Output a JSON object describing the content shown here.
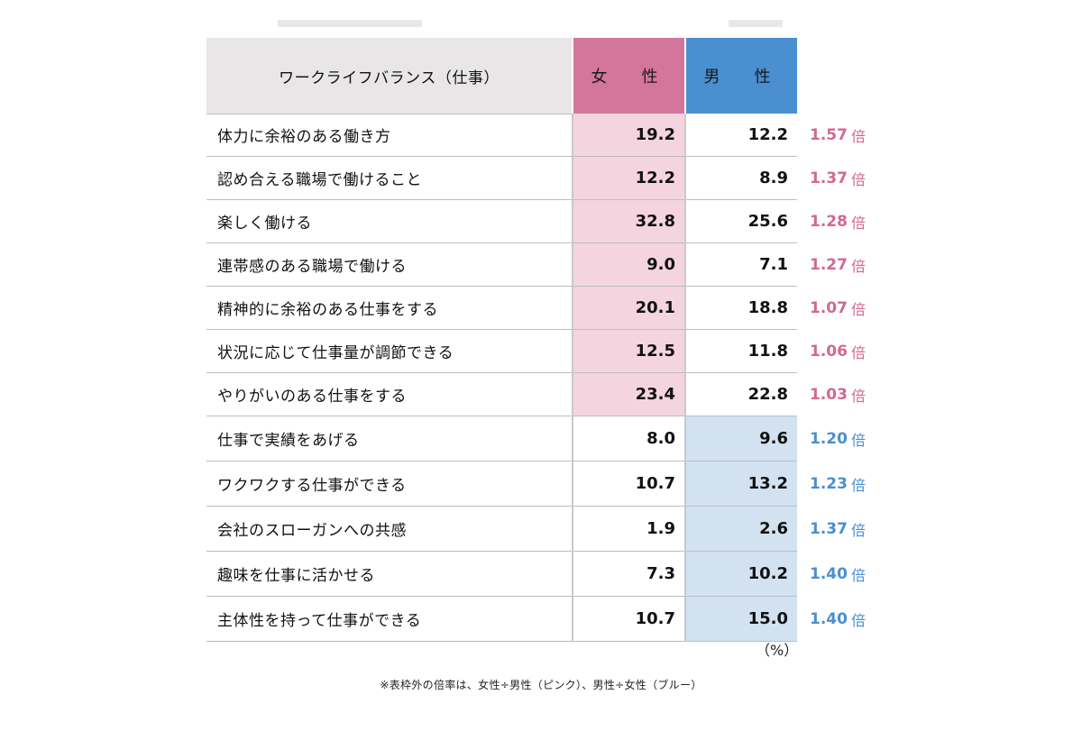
{
  "table": {
    "header": {
      "label": "ワークライフバランス（仕事）",
      "female": "女　性",
      "male": "男　性"
    },
    "rows": [
      {
        "item": "体力に余裕のある働き方",
        "female": "19.2",
        "male": "12.2",
        "ratio": "1.57",
        "unit": "倍",
        "highlight": "female"
      },
      {
        "item": "認め合える職場で働けること",
        "female": "12.2",
        "male": "8.9",
        "ratio": "1.37",
        "unit": "倍",
        "highlight": "female"
      },
      {
        "item": "楽しく働ける",
        "female": "32.8",
        "male": "25.6",
        "ratio": "1.28",
        "unit": "倍",
        "highlight": "female"
      },
      {
        "item": "連帯感のある職場で働ける",
        "female": "9.0",
        "male": "7.1",
        "ratio": "1.27",
        "unit": "倍",
        "highlight": "female"
      },
      {
        "item": "精神的に余裕のある仕事をする",
        "female": "20.1",
        "male": "18.8",
        "ratio": "1.07",
        "unit": "倍",
        "highlight": "female"
      },
      {
        "item": "状況に応じて仕事量が調節できる",
        "female": "12.5",
        "male": "11.8",
        "ratio": "1.06",
        "unit": "倍",
        "highlight": "female"
      },
      {
        "item": "やりがいのある仕事をする",
        "female": "23.4",
        "male": "22.8",
        "ratio": "1.03",
        "unit": "倍",
        "highlight": "female"
      },
      {
        "item": "仕事で実績をあげる",
        "female": "8.0",
        "male": "9.6",
        "ratio": "1.20",
        "unit": "倍",
        "highlight": "male"
      },
      {
        "item": "ワクワクする仕事ができる",
        "female": "10.7",
        "male": "13.2",
        "ratio": "1.23",
        "unit": "倍",
        "highlight": "male"
      },
      {
        "item": "会社のスローガンへの共感",
        "female": "1.9",
        "male": "2.6",
        "ratio": "1.37",
        "unit": "倍",
        "highlight": "male"
      },
      {
        "item": "趣味を仕事に活かせる",
        "female": "7.3",
        "male": "10.2",
        "ratio": "1.40",
        "unit": "倍",
        "highlight": "male"
      },
      {
        "item": "主体性を持って仕事ができる",
        "female": "10.7",
        "male": "15.0",
        "ratio": "1.40",
        "unit": "倍",
        "highlight": "male"
      }
    ],
    "unit_note": "（%）"
  },
  "footnote": "※表枠外の倍率は、女性÷男性（ピンク）、男性÷女性（ブルー）",
  "colors": {
    "female_header": "#d4759b",
    "female_cell": "#f4d4df",
    "male_header": "#4a8fcf",
    "male_cell": "#d2e2f1",
    "ratio_pink": "#d16892",
    "ratio_blue": "#4a8fcf",
    "header_gray": "#e8e6e6"
  }
}
